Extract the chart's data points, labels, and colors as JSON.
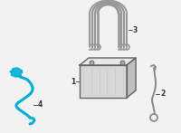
{
  "bg_color": "#f2f2f2",
  "bracket_color": "#999999",
  "battery_face_color": "#d8d8d8",
  "battery_top_color": "#e8e8e8",
  "battery_right_color": "#c0c0c0",
  "battery_edge_color": "#666666",
  "sensor_color": "#00b0d8",
  "ground_color": "#888888",
  "label_color": "#333333",
  "label_fontsize": 5.5,
  "bracket_lw": 1.8,
  "sensor_lw": 2.2,
  "ground_lw": 1.4,
  "battery_lw": 1.0
}
